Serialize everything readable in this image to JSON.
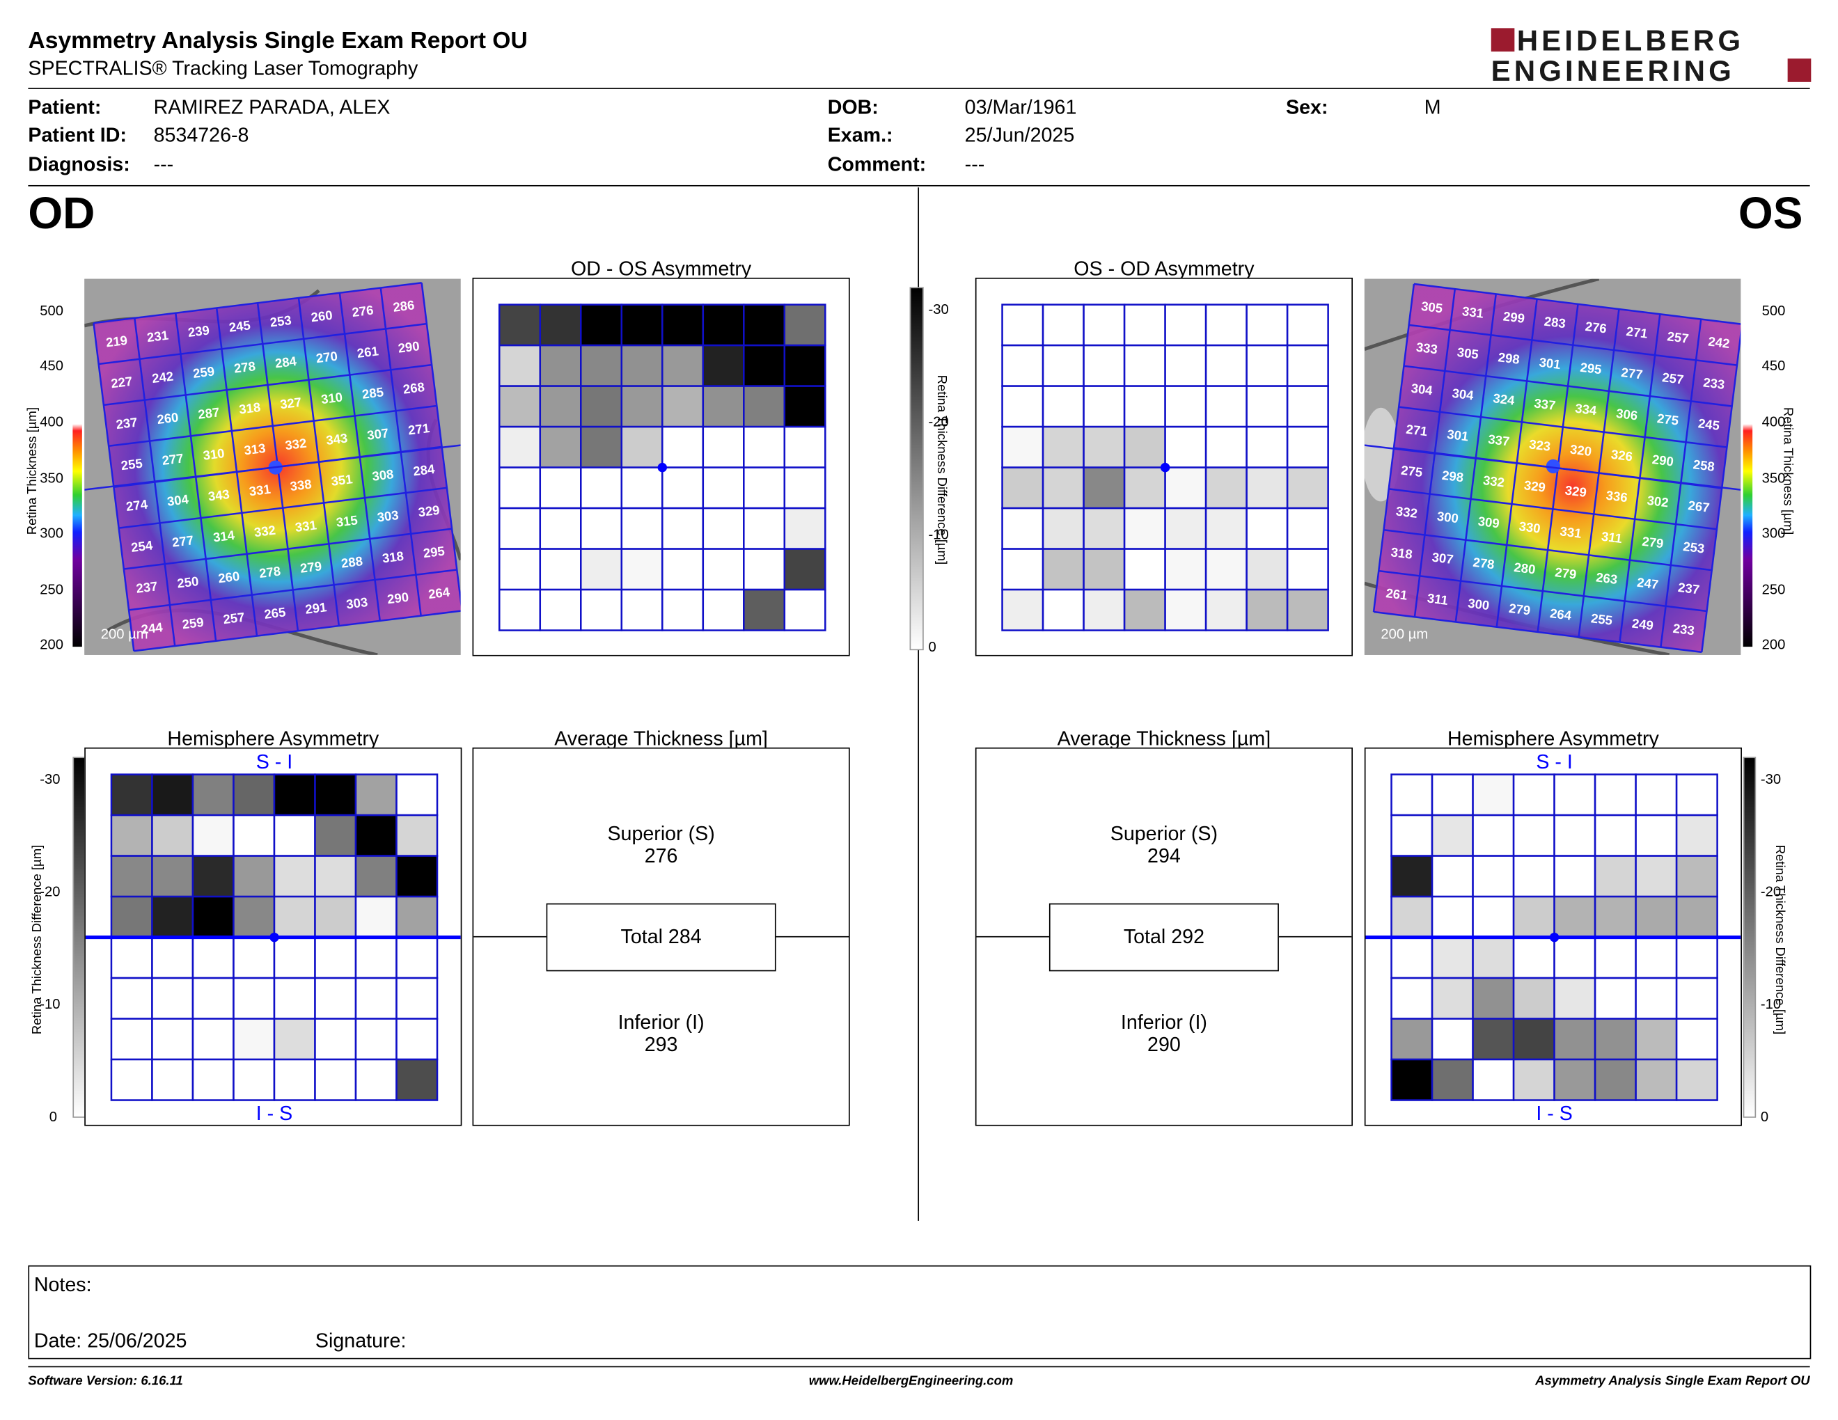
{
  "header": {
    "title": "Asymmetry Analysis Single Exam Report OU",
    "subtitle": "SPECTRALIS® Tracking Laser Tomography",
    "logo_line1": "HEIDELBERG",
    "logo_line2": "ENGINEERING",
    "colors": {
      "logo_red": "#9b1b2e",
      "logo_dark": "#1a1a1a"
    }
  },
  "patient": {
    "patient_label": "Patient:",
    "patient_value": "RAMIREZ PARADA, ALEX",
    "id_label": "Patient ID:",
    "id_value": "8534726-8",
    "diagnosis_label": "Diagnosis:",
    "diagnosis_value": "---",
    "dob_label": "DOB:",
    "dob_value": "03/Mar/1961",
    "exam_label": "Exam.:",
    "exam_value": "25/Jun/2025",
    "comment_label": "Comment:",
    "comment_value": "---",
    "sex_label": "Sex:",
    "sex_value": "M"
  },
  "od": {
    "eye_label": "OD",
    "asym_title": "OD - OS Asymmetry",
    "hemi_title": "Hemisphere Asymmetry",
    "avg_title": "Average Thickness [µm]",
    "superior_label": "Superior (S)",
    "superior_value": "276",
    "total_label": "Total 284",
    "inferior_label": "Inferior (I)",
    "inferior_value": "293",
    "scale_label": "200 µm",
    "hemi_top": "S - I",
    "hemi_bottom": "I - S",
    "thickness_grid": [
      [
        219,
        231,
        239,
        245,
        253,
        260,
        276,
        286
      ],
      [
        227,
        242,
        259,
        278,
        284,
        270,
        261,
        290
      ],
      [
        237,
        260,
        287,
        318,
        327,
        310,
        285,
        268
      ],
      [
        255,
        277,
        310,
        313,
        332,
        343,
        307,
        271
      ],
      [
        274,
        304,
        343,
        331,
        338,
        351,
        308,
        284
      ],
      [
        254,
        277,
        314,
        332,
        331,
        315,
        303,
        329
      ],
      [
        237,
        250,
        260,
        278,
        279,
        288,
        318,
        295
      ],
      [
        244,
        259,
        257,
        265,
        291,
        303,
        290,
        264
      ]
    ],
    "asym_grid": [
      [
        -22,
        -24,
        -30,
        -30,
        -30,
        -30,
        -30,
        -17
      ],
      [
        -5,
        -13,
        -14,
        -13,
        -12,
        -26,
        -30,
        -30
      ],
      [
        -8,
        -12,
        -16,
        -12,
        -9,
        -13,
        -15,
        -30
      ],
      [
        -2,
        -11,
        -16,
        -6,
        0,
        0,
        0,
        0
      ],
      [
        0,
        0,
        0,
        0,
        0,
        0,
        0,
        0
      ],
      [
        0,
        0,
        0,
        0,
        0,
        0,
        0,
        -2
      ],
      [
        0,
        0,
        -2,
        -1,
        0,
        0,
        0,
        -22
      ],
      [
        0,
        0,
        0,
        0,
        0,
        0,
        -19,
        0
      ]
    ],
    "hemi_grid": [
      [
        -24,
        -27,
        -15,
        -18,
        -30,
        -30,
        -11,
        0
      ],
      [
        -9,
        -6,
        -1,
        0,
        0,
        -16,
        -30,
        -5
      ],
      [
        -14,
        -14,
        -25,
        -12,
        -4,
        -4,
        -15,
        -30
      ],
      [
        -16,
        -26,
        -30,
        -14,
        -5,
        -6,
        -1,
        -11
      ],
      [
        0,
        0,
        0,
        0,
        0,
        0,
        0,
        0
      ],
      [
        0,
        0,
        0,
        0,
        0,
        0,
        0,
        0
      ],
      [
        0,
        0,
        0,
        -1,
        -4,
        0,
        0,
        0
      ],
      [
        0,
        0,
        0,
        0,
        0,
        0,
        0,
        -21
      ]
    ]
  },
  "os": {
    "eye_label": "OS",
    "asym_title": "OS - OD Asymmetry",
    "hemi_title": "Hemisphere Asymmetry",
    "avg_title": "Average Thickness [µm]",
    "superior_label": "Superior (S)",
    "superior_value": "294",
    "total_label": "Total 292",
    "inferior_label": "Inferior (I)",
    "inferior_value": "290",
    "scale_label": "200 µm",
    "hemi_top": "S - I",
    "hemi_bottom": "I - S",
    "thickness_grid": [
      [
        305,
        331,
        299,
        283,
        276,
        271,
        257,
        242
      ],
      [
        333,
        305,
        298,
        301,
        295,
        277,
        257,
        233
      ],
      [
        304,
        304,
        324,
        337,
        334,
        306,
        275,
        245
      ],
      [
        271,
        301,
        337,
        323,
        320,
        326,
        290,
        258
      ],
      [
        275,
        298,
        332,
        329,
        329,
        336,
        302,
        267
      ],
      [
        332,
        300,
        309,
        330,
        331,
        311,
        279,
        253
      ],
      [
        318,
        307,
        278,
        280,
        279,
        263,
        247,
        237
      ],
      [
        261,
        311,
        300,
        279,
        264,
        255,
        249,
        233
      ]
    ],
    "asym_grid": [
      [
        0,
        0,
        0,
        0,
        0,
        0,
        0,
        0
      ],
      [
        0,
        0,
        0,
        0,
        0,
        0,
        0,
        0
      ],
      [
        0,
        0,
        0,
        0,
        0,
        0,
        0,
        0
      ],
      [
        -1,
        -5,
        -5,
        -6,
        0,
        0,
        0,
        0
      ],
      [
        -6,
        -5,
        -14,
        -5,
        -1,
        -5,
        -3,
        -5
      ],
      [
        0,
        -3,
        -4,
        -1,
        -2,
        -2,
        0,
        0
      ],
      [
        0,
        -7,
        -7,
        0,
        -1,
        -1,
        -3,
        0
      ],
      [
        -2,
        0,
        -2,
        -8,
        -1,
        -2,
        -8,
        -8
      ]
    ],
    "hemi_grid": [
      [
        0,
        0,
        -1,
        0,
        0,
        0,
        0,
        0
      ],
      [
        0,
        -3,
        0,
        0,
        0,
        0,
        0,
        -3
      ],
      [
        -26,
        0,
        0,
        0,
        0,
        -5,
        -4,
        -8
      ],
      [
        -5,
        0,
        0,
        -6,
        -9,
        -9,
        -10,
        -10
      ],
      [
        0,
        -3,
        -4,
        0,
        0,
        0,
        0,
        0
      ],
      [
        0,
        -4,
        -13,
        -6,
        -3,
        0,
        0,
        0
      ],
      [
        -12,
        0,
        -20,
        -22,
        -13,
        -13,
        -8,
        0
      ],
      [
        -30,
        -17,
        0,
        -5,
        -12,
        -14,
        -8,
        -5
      ]
    ]
  },
  "thickness_axis": {
    "label": "Retina  Thickness [µm]",
    "ticks": [
      "500",
      "450",
      "400",
      "350",
      "300",
      "250",
      "200"
    ]
  },
  "diff_axis": {
    "label": "Retina Thickness Difference [µm]",
    "ticks": [
      "-30",
      "-20",
      "-10",
      "0"
    ]
  },
  "notes": {
    "notes_label": "Notes:",
    "date_label": "Date: 25/06/2025",
    "signature_label": "Signature:"
  },
  "footer": {
    "software": "Software Version: 6.16.11",
    "website": "www.HeidelbergEngineering.com",
    "report_name": "Asymmetry Analysis Single Exam Report OU"
  },
  "colors": {
    "grid_blue": "#1010c8",
    "accent_blue": "#0000ff"
  }
}
